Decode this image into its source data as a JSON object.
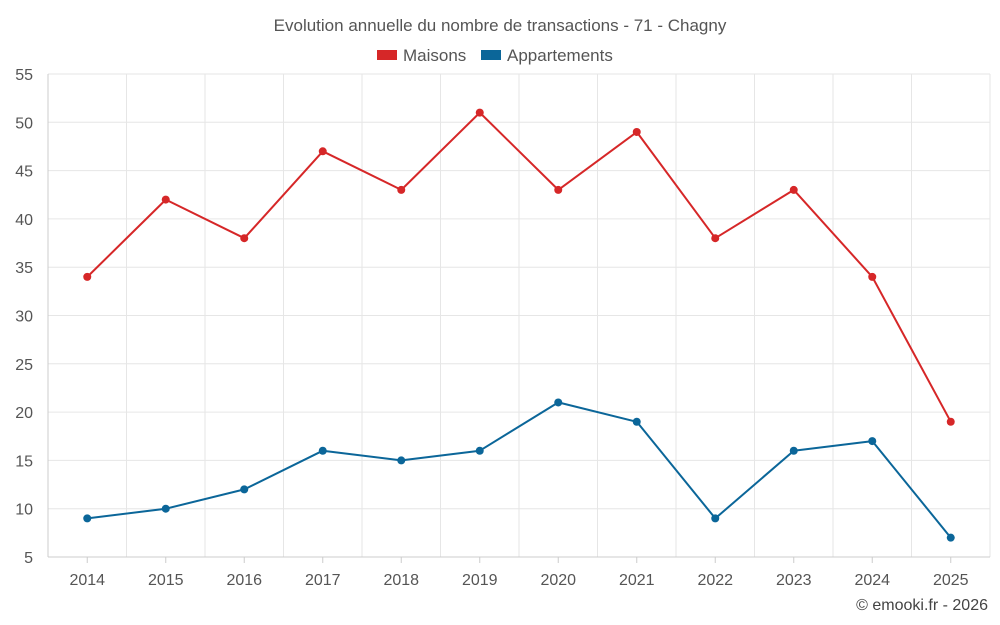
{
  "chart_data": {
    "type": "line",
    "title": "Evolution annuelle du nombre de transactions - 71 - Chagny",
    "categories": [
      "2014",
      "2015",
      "2016",
      "2017",
      "2018",
      "2019",
      "2020",
      "2021",
      "2022",
      "2023",
      "2024",
      "2025"
    ],
    "series": [
      {
        "name": "Maisons",
        "color": "#d62728",
        "values": [
          34,
          42,
          38,
          47,
          43,
          51,
          43,
          49,
          38,
          43,
          34,
          19
        ]
      },
      {
        "name": "Appartements",
        "color": "#0b6699",
        "values": [
          9,
          10,
          12,
          16,
          15,
          16,
          21,
          19,
          9,
          16,
          17,
          7
        ]
      }
    ],
    "ylim": [
      5,
      55
    ],
    "yticks": [
      5,
      10,
      15,
      20,
      25,
      30,
      35,
      40,
      45,
      50,
      55
    ],
    "xlabel": "",
    "ylabel": "",
    "grid": true,
    "legend": "top-center"
  },
  "credit": "© emooki.fr - 2026"
}
